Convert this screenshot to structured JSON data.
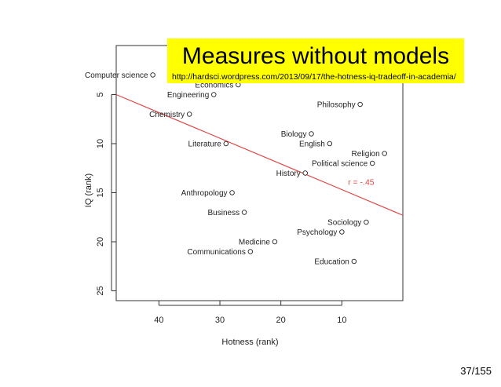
{
  "chart_data": {
    "type": "scatter",
    "xlabel": "Hotness (rank)",
    "ylabel": "IQ (rank)",
    "xlim": [
      47,
      0
    ],
    "ylim": [
      26,
      0
    ],
    "x_reversed": true,
    "y_reversed": true,
    "x_ticks": [
      40,
      30,
      20,
      10
    ],
    "y_ticks": [
      5,
      10,
      15,
      20,
      25
    ],
    "grid": false,
    "points": [
      {
        "label": "Computer science",
        "x": 41,
        "y": 3
      },
      {
        "label": "Economics",
        "x": 27,
        "y": 4
      },
      {
        "label": "Engineering",
        "x": 31,
        "y": 5
      },
      {
        "label": "Philosophy",
        "x": 7,
        "y": 6
      },
      {
        "label": "Chemistry",
        "x": 35,
        "y": 7
      },
      {
        "label": "Biology",
        "x": 15,
        "y": 9
      },
      {
        "label": "English",
        "x": 12,
        "y": 10
      },
      {
        "label": "Literature",
        "x": 29,
        "y": 10
      },
      {
        "label": "Religion",
        "x": 3,
        "y": 11
      },
      {
        "label": "Political science",
        "x": 5,
        "y": 12
      },
      {
        "label": "History",
        "x": 16,
        "y": 13
      },
      {
        "label": "Anthropology",
        "x": 28,
        "y": 15
      },
      {
        "label": "Business",
        "x": 26,
        "y": 17
      },
      {
        "label": "Sociology",
        "x": 6,
        "y": 18
      },
      {
        "label": "Psychology",
        "x": 10,
        "y": 19
      },
      {
        "label": "Medicine",
        "x": 21,
        "y": 20
      },
      {
        "label": "Communications",
        "x": 25,
        "y": 21
      },
      {
        "label": "Education",
        "x": 8,
        "y": 22
      }
    ],
    "fit_line": {
      "x": [
        47,
        0
      ],
      "y": [
        5.0,
        17.3
      ],
      "color": "#e04a4a"
    },
    "annotation": "r = -.45",
    "annotation_color": "#e04a4a",
    "point_color": "#222222"
  },
  "overlay": {
    "title": "Measures without models",
    "url": "http://hardsci.wordpress.com/2013/09/17/the-hotness-iq-tradeoff-in-academia/",
    "background": "#ffff00"
  },
  "page_number": "37/155"
}
